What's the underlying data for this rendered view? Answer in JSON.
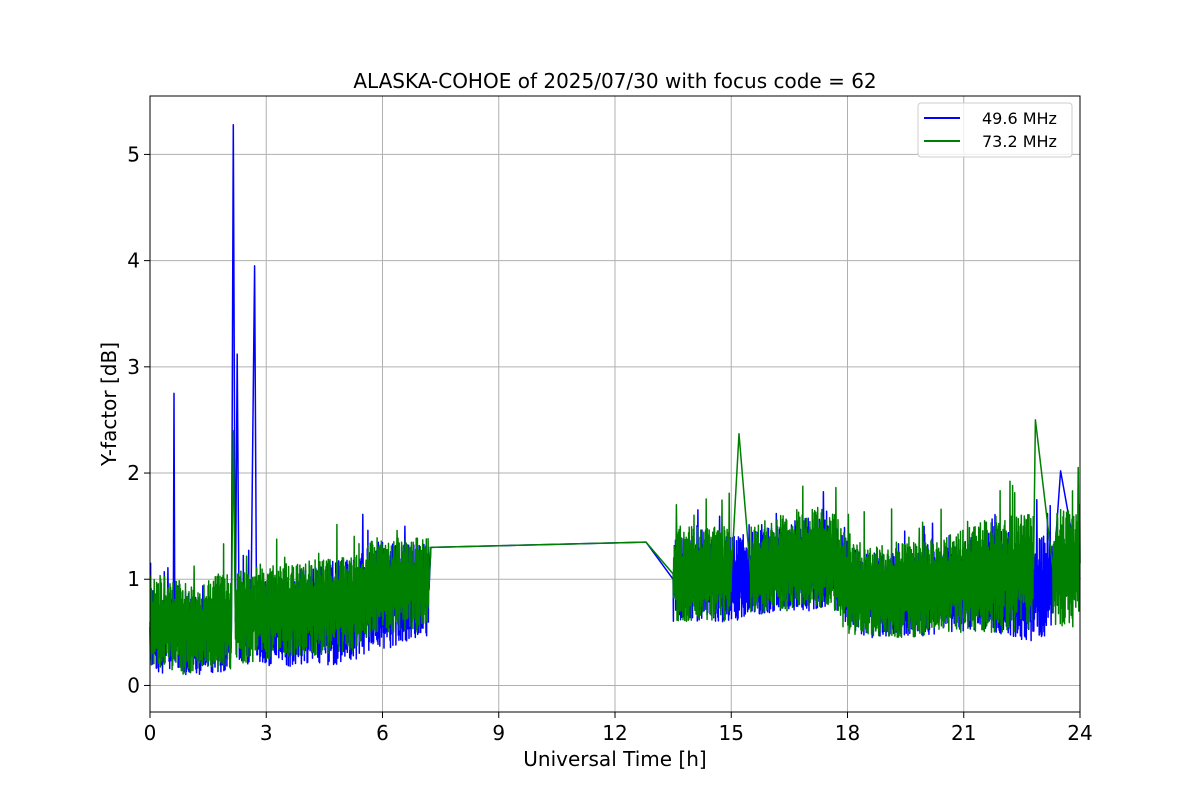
{
  "chart_data": {
    "type": "line",
    "title": "ALASKA-COHOE of 2025/07/30 with focus code = 62",
    "xlabel": "Universal Time [h]",
    "ylabel": "Y-factor [dB]",
    "xlim": [
      0,
      24
    ],
    "ylim": [
      -0.25,
      5.55
    ],
    "xticks": [
      0,
      3,
      6,
      9,
      12,
      15,
      18,
      21,
      24
    ],
    "xtick_labels": [
      "0",
      "3",
      "6",
      "9",
      "12",
      "15",
      "18",
      "21",
      "24"
    ],
    "yticks": [
      0,
      1,
      2,
      3,
      4,
      5
    ],
    "ytick_labels": [
      "0",
      "1",
      "2",
      "3",
      "4",
      "5"
    ],
    "grid": true,
    "legend_position": "top-right",
    "series": [
      {
        "name": "49.6 MHz",
        "color": "#0000ff",
        "x": [
          0.0,
          0.3,
          0.6,
          0.62,
          0.64,
          0.9,
          1.3,
          1.7,
          2.1,
          2.15,
          2.2,
          2.25,
          2.3,
          2.6,
          2.7,
          2.75,
          2.9,
          3.3,
          4.0,
          4.7,
          5.3,
          5.8,
          6.2,
          6.7,
          7.2,
          7.25,
          12.8,
          13.5,
          14.2,
          15.0,
          15.5,
          16.2,
          17.0,
          17.6,
          18.0,
          18.4,
          19.0,
          19.8,
          20.5,
          21.2,
          21.8,
          22.3,
          22.8,
          23.3,
          23.5,
          24.0
        ],
        "y": [
          0.55,
          0.5,
          0.55,
          2.75,
          0.6,
          0.5,
          0.45,
          0.5,
          0.55,
          5.28,
          0.6,
          3.12,
          0.6,
          0.6,
          3.95,
          0.6,
          0.6,
          0.6,
          0.65,
          0.68,
          0.72,
          0.85,
          0.85,
          0.88,
          0.9,
          1.3,
          1.35,
          1.0,
          1.0,
          1.0,
          1.05,
          1.1,
          1.15,
          1.15,
          0.95,
          0.85,
          0.85,
          0.85,
          0.9,
          0.95,
          1.0,
          0.95,
          0.9,
          1.0,
          2.02,
          1.0
        ],
        "spread": [
          0.4,
          0.4,
          0.4,
          0.0,
          0.4,
          0.4,
          0.35,
          0.4,
          0.4,
          0.0,
          0.4,
          0.0,
          0.4,
          0.4,
          0.0,
          0.4,
          0.4,
          0.45,
          0.45,
          0.5,
          0.5,
          0.5,
          0.5,
          0.45,
          0.45,
          0.0,
          0.0,
          0.4,
          0.4,
          0.4,
          0.4,
          0.4,
          0.45,
          0.4,
          0.4,
          0.4,
          0.4,
          0.4,
          0.4,
          0.45,
          0.5,
          0.5,
          0.5,
          0.5,
          0.0,
          0.5
        ]
      },
      {
        "name": "73.2 MHz",
        "color": "#008000",
        "x": [
          0.0,
          0.3,
          0.6,
          0.9,
          1.3,
          1.7,
          2.1,
          2.15,
          2.2,
          2.3,
          2.6,
          2.9,
          3.3,
          4.0,
          4.7,
          5.3,
          5.8,
          6.2,
          6.7,
          7.2,
          7.25,
          12.8,
          13.5,
          14.2,
          15.0,
          15.2,
          15.5,
          16.2,
          17.0,
          17.6,
          18.0,
          18.4,
          19.0,
          19.8,
          20.5,
          21.2,
          21.8,
          22.3,
          22.8,
          22.85,
          23.3,
          24.0
        ],
        "y": [
          0.6,
          0.6,
          0.55,
          0.55,
          0.55,
          0.6,
          0.6,
          2.4,
          0.65,
          0.65,
          0.65,
          0.7,
          0.7,
          0.72,
          0.75,
          0.78,
          0.95,
          0.95,
          0.95,
          0.95,
          1.3,
          1.35,
          1.05,
          1.05,
          1.05,
          2.37,
          1.05,
          1.15,
          1.2,
          1.2,
          0.95,
          0.9,
          0.9,
          0.9,
          0.95,
          1.0,
          1.05,
          1.05,
          1.1,
          2.5,
          1.1,
          1.15
        ],
        "spread": [
          0.45,
          0.45,
          0.45,
          0.45,
          0.4,
          0.45,
          0.45,
          0.0,
          0.45,
          0.45,
          0.45,
          0.45,
          0.45,
          0.45,
          0.45,
          0.45,
          0.45,
          0.45,
          0.45,
          0.45,
          0.0,
          0.0,
          0.45,
          0.45,
          0.45,
          0.0,
          0.45,
          0.45,
          0.5,
          0.45,
          0.5,
          0.45,
          0.45,
          0.45,
          0.45,
          0.5,
          0.55,
          0.55,
          0.55,
          0.0,
          0.55,
          0.6
        ]
      }
    ]
  }
}
